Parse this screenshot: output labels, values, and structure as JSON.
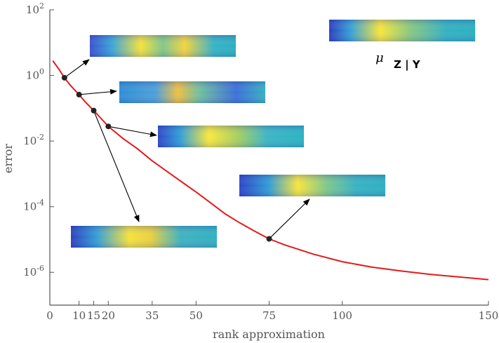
{
  "chart_data": {
    "type": "line",
    "title": "",
    "xlabel": "rank approximation",
    "ylabel": "error",
    "x_ticks": [
      0,
      10,
      15,
      20,
      35,
      50,
      75,
      100,
      150
    ],
    "x_tick_labels": [
      "0",
      "10",
      "15",
      "20",
      "35",
      "50",
      "75",
      "100",
      "150"
    ],
    "y_scale": "log",
    "y_ticks": [
      100.0,
      1,
      0.01,
      0.0001,
      1e-06
    ],
    "y_tick_labels": [
      {
        "base": "10",
        "exp": "2"
      },
      {
        "base": "10",
        "exp": "0"
      },
      {
        "base": "10",
        "exp": "-2"
      },
      {
        "base": "10",
        "exp": "-4"
      },
      {
        "base": "10",
        "exp": "-6"
      }
    ],
    "xlim": [
      0,
      150
    ],
    "ylim": [
      1e-07,
      100
    ],
    "grid": false,
    "series": [
      {
        "color": "#e41a1c",
        "x": [
          1,
          3,
          5,
          7,
          10,
          12,
          15,
          18,
          20,
          25,
          30,
          35,
          40,
          45,
          50,
          55,
          60,
          65,
          70,
          75,
          80,
          90,
          100,
          110,
          120,
          130,
          140,
          150
        ],
        "y": [
          2.8,
          1.6,
          0.85,
          0.5,
          0.26,
          0.16,
          0.085,
          0.044,
          0.028,
          0.012,
          0.0058,
          0.0025,
          0.0012,
          0.00058,
          0.00028,
          0.00013,
          6e-05,
          3.2e-05,
          1.8e-05,
          1.05e-05,
          7e-06,
          3.6e-06,
          2.1e-06,
          1.45e-06,
          1.1e-06,
          8.7e-07,
          7.2e-07,
          6e-07
        ]
      }
    ],
    "highlighted_points": [
      {
        "x": 5,
        "y": 0.85
      },
      {
        "x": 10,
        "y": 0.26
      },
      {
        "x": 15,
        "y": 0.085
      },
      {
        "x": 20,
        "y": 0.028
      },
      {
        "x": 75,
        "y": 1.05e-05
      }
    ]
  },
  "annotation": {
    "mu": "μ",
    "given": "Z |  Y"
  },
  "colors": {
    "line": "#e41a1c",
    "axis": "#555555",
    "marker": "#222222"
  }
}
